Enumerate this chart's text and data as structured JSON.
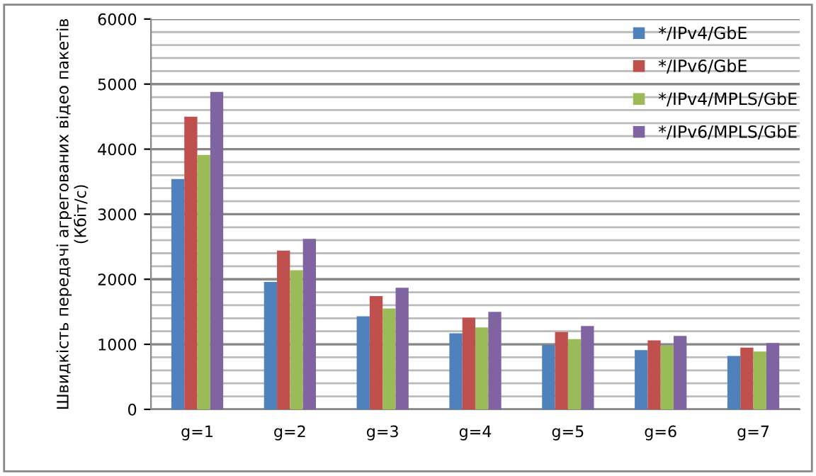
{
  "chart_data": {
    "type": "bar",
    "ylabel": "Швидкість передачі агрегованих відео пакетів (Кбіт/с)",
    "categories": [
      "g=1",
      "g=2",
      "g=3",
      "g=4",
      "g=5",
      "g=6",
      "g=7"
    ],
    "series": [
      {
        "name": "*/IPv4/GbE",
        "color": "#4f81bd",
        "values": [
          3540,
          1960,
          1430,
          1170,
          990,
          910,
          820
        ]
      },
      {
        "name": "*/IPv6/GbE",
        "color": "#c0504d",
        "values": [
          4500,
          2440,
          1740,
          1410,
          1190,
          1060,
          950
        ]
      },
      {
        "name": "*/IPv4/MPLS/GbE",
        "color": "#9bbb59",
        "values": [
          3910,
          2140,
          1550,
          1260,
          1080,
          980,
          890
        ]
      },
      {
        "name": "*/IPv6/MPLS/GbE",
        "color": "#8064a2",
        "values": [
          4880,
          2620,
          1870,
          1500,
          1280,
          1130,
          1020
        ]
      }
    ],
    "ylim": [
      0,
      6000
    ],
    "yticks": [
      0,
      1000,
      2000,
      3000,
      4000,
      5000,
      6000
    ],
    "grid": "y",
    "legend": "top right"
  }
}
